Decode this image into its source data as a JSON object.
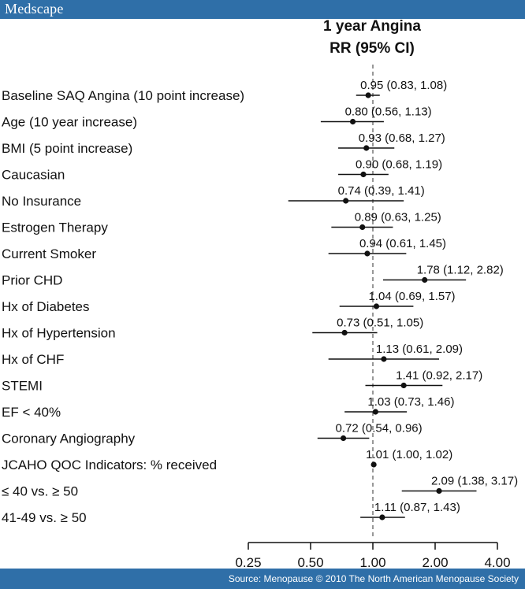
{
  "header": {
    "brand": "Medscape"
  },
  "footer": {
    "source": "Source: Menopause © 2010 The North American Menopause Society"
  },
  "chart_data": {
    "type": "forest",
    "title": "1 year Angina",
    "subtitle": "RR (95% CI)",
    "scale": "log",
    "reference_value": 1.0,
    "xticks": [
      0.25,
      0.5,
      1.0,
      2.0,
      4.0
    ],
    "xtick_labels": [
      "0.25",
      "0.50",
      "1.00",
      "2.00",
      "4.00"
    ],
    "rows": [
      {
        "label": "Baseline SAQ Angina (10 point increase)",
        "rr": 0.95,
        "lo": 0.83,
        "hi": 1.08,
        "text": "0.95 (0.83, 1.08)"
      },
      {
        "label": "Age (10 year increase)",
        "rr": 0.8,
        "lo": 0.56,
        "hi": 1.13,
        "text": "0.80 (0.56, 1.13)"
      },
      {
        "label": "BMI (5 point increase)",
        "rr": 0.93,
        "lo": 0.68,
        "hi": 1.27,
        "text": "0.93 (0.68, 1.27)"
      },
      {
        "label": "Caucasian",
        "rr": 0.9,
        "lo": 0.68,
        "hi": 1.19,
        "text": "0.90 (0.68, 1.19)"
      },
      {
        "label": "No Insurance",
        "rr": 0.74,
        "lo": 0.39,
        "hi": 1.41,
        "text": "0.74 (0.39, 1.41)"
      },
      {
        "label": "Estrogen Therapy",
        "rr": 0.89,
        "lo": 0.63,
        "hi": 1.25,
        "text": "0.89 (0.63, 1.25)"
      },
      {
        "label": "Current Smoker",
        "rr": 0.94,
        "lo": 0.61,
        "hi": 1.45,
        "text": "0.94 (0.61, 1.45)"
      },
      {
        "label": "Prior CHD",
        "rr": 1.78,
        "lo": 1.12,
        "hi": 2.82,
        "text": "1.78 (1.12, 2.82)"
      },
      {
        "label": "Hx of Diabetes",
        "rr": 1.04,
        "lo": 0.69,
        "hi": 1.57,
        "text": "1.04 (0.69, 1.57)"
      },
      {
        "label": "Hx of Hypertension",
        "rr": 0.73,
        "lo": 0.51,
        "hi": 1.05,
        "text": "0.73 (0.51, 1.05)"
      },
      {
        "label": "Hx of CHF",
        "rr": 1.13,
        "lo": 0.61,
        "hi": 2.09,
        "text": "1.13 (0.61, 2.09)"
      },
      {
        "label": "STEMI",
        "rr": 1.41,
        "lo": 0.92,
        "hi": 2.17,
        "text": "1.41 (0.92, 2.17)"
      },
      {
        "label": "EF < 40%",
        "rr": 1.03,
        "lo": 0.73,
        "hi": 1.46,
        "text": "1.03 (0.73, 1.46)"
      },
      {
        "label": "Coronary Angiography",
        "rr": 0.72,
        "lo": 0.54,
        "hi": 0.96,
        "text": "0.72 (0.54, 0.96)"
      },
      {
        "label": "JCAHO QOC Indicators: % received",
        "rr": 1.01,
        "lo": 1.0,
        "hi": 1.02,
        "text": "1.01 (1.00, 1.02)"
      },
      {
        "label": "≤ 40 vs. ≥ 50",
        "rr": 2.09,
        "lo": 1.38,
        "hi": 3.17,
        "text": "2.09 (1.38, 3.17)"
      },
      {
        "label": "41-49 vs. ≥ 50",
        "rr": 1.11,
        "lo": 0.87,
        "hi": 1.43,
        "text": "1.11 (0.87, 1.43)"
      }
    ]
  }
}
